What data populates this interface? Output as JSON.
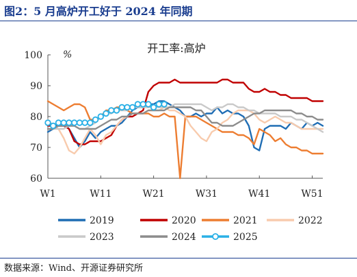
{
  "header": {
    "title": "图2：5 月高炉开工好于 2024 年同期"
  },
  "footer": {
    "source": "数据来源：Wind、开源证券研究所"
  },
  "chart_data": {
    "type": "line",
    "title": "开工率:高炉",
    "ylabel": "%",
    "ylim": [
      60,
      100
    ],
    "yticks": [
      60,
      70,
      80,
      90,
      100
    ],
    "xlim": [
      1,
      53
    ],
    "xticks": [
      1,
      11,
      21,
      31,
      41,
      51
    ],
    "xtick_labels": [
      "W1",
      "W11",
      "W21",
      "W31",
      "W41",
      "W51"
    ],
    "grid": false,
    "legend_position": "bottom",
    "series": [
      {
        "name": "2019",
        "color": "#1f6db4",
        "marker": false,
        "x": [
          1,
          2,
          3,
          4,
          5,
          6,
          7,
          8,
          9,
          10,
          11,
          12,
          13,
          14,
          15,
          16,
          17,
          18,
          19,
          20,
          21,
          22,
          23,
          24,
          25,
          26,
          27,
          28,
          29,
          30,
          31,
          32,
          33,
          34,
          35,
          36,
          37,
          38,
          39,
          40,
          41,
          42,
          43,
          44,
          45,
          46,
          47,
          48,
          49,
          50,
          51,
          52,
          53
        ],
        "y": [
          75,
          76,
          77,
          78,
          76,
          73,
          70,
          72,
          75,
          73,
          75,
          76,
          77,
          77,
          78,
          80,
          82,
          83,
          83,
          84,
          84,
          85,
          85,
          84,
          83,
          82,
          80,
          80,
          81,
          80,
          81,
          81,
          83,
          81,
          82,
          81,
          81,
          80,
          77,
          70,
          69,
          76,
          77,
          77,
          77,
          76,
          78,
          77,
          76,
          78,
          77,
          78,
          77
        ]
      },
      {
        "name": "2020",
        "color": "#c00000",
        "marker": false,
        "x": [
          1,
          2,
          3,
          4,
          5,
          6,
          7,
          8,
          9,
          10,
          11,
          12,
          13,
          14,
          15,
          16,
          17,
          18,
          19,
          20,
          21,
          22,
          23,
          24,
          25,
          26,
          27,
          28,
          29,
          30,
          31,
          32,
          33,
          34,
          35,
          36,
          37,
          38,
          39,
          40,
          41,
          42,
          43,
          44,
          45,
          46,
          47,
          48,
          49,
          50,
          51,
          52,
          53
        ],
        "y": [
          77,
          77,
          77,
          77,
          76,
          72,
          71,
          71,
          72,
          72,
          72,
          73,
          74,
          77,
          79,
          80,
          80,
          81,
          82,
          88,
          90,
          91,
          91,
          91,
          92,
          91,
          91,
          91,
          91,
          91,
          91,
          91,
          91,
          92,
          92,
          91,
          91,
          91,
          89,
          88,
          88,
          89,
          88,
          88,
          87,
          87,
          86,
          86,
          86,
          86,
          85,
          85,
          85
        ]
      },
      {
        "name": "2021",
        "color": "#ed7d31",
        "marker": false,
        "x": [
          1,
          2,
          3,
          4,
          5,
          6,
          7,
          8,
          9,
          10,
          11,
          12,
          13,
          14,
          15,
          16,
          17,
          18,
          19,
          20,
          21,
          22,
          23,
          24,
          25,
          26,
          27,
          28,
          29,
          30,
          31,
          32,
          33,
          34,
          35,
          36,
          37,
          38,
          39,
          40,
          41,
          42,
          43,
          44,
          45,
          46,
          47,
          48,
          49,
          50,
          51,
          52,
          53
        ],
        "y": [
          85,
          84,
          83,
          82,
          83,
          84,
          84,
          83,
          79,
          79,
          80,
          82,
          82,
          83,
          83,
          82,
          81,
          81,
          81,
          81,
          80,
          80,
          81,
          80,
          80,
          60,
          80,
          80,
          80,
          79,
          78,
          77,
          76,
          75,
          75,
          75,
          74,
          74,
          73,
          71,
          76,
          75,
          74,
          72,
          73,
          71,
          70,
          70,
          69,
          69,
          68,
          68,
          68
        ]
      },
      {
        "name": "2022",
        "color": "#f8cbad",
        "marker": false,
        "x": [
          1,
          2,
          3,
          4,
          5,
          6,
          7,
          8,
          9,
          10,
          11,
          12,
          13,
          14,
          15,
          16,
          17,
          18,
          19,
          20,
          21,
          22,
          23,
          24,
          25,
          26,
          27,
          28,
          29,
          30,
          31,
          32,
          33,
          34,
          35,
          36,
          37,
          38,
          39,
          40,
          41,
          42,
          43,
          44,
          45,
          46,
          47,
          48,
          49,
          50,
          51,
          52,
          53
        ],
        "y": [
          79,
          77,
          76,
          73,
          69,
          68,
          70,
          73,
          76,
          74,
          71,
          74,
          75,
          77,
          79,
          80,
          81,
          81,
          81,
          82,
          82,
          82,
          83,
          82,
          82,
          81,
          80,
          77,
          75,
          73,
          72,
          75,
          76,
          78,
          79,
          81,
          82,
          82,
          82,
          81,
          79,
          78,
          79,
          80,
          79,
          78,
          78,
          77,
          76,
          76,
          76,
          76,
          76
        ]
      },
      {
        "name": "2023",
        "color": "#c9c9c9",
        "marker": false,
        "x": [
          1,
          2,
          3,
          4,
          5,
          6,
          7,
          8,
          9,
          10,
          11,
          12,
          13,
          14,
          15,
          16,
          17,
          18,
          19,
          20,
          21,
          22,
          23,
          24,
          25,
          26,
          27,
          28,
          29,
          30,
          31,
          32,
          33,
          34,
          35,
          36,
          37,
          38,
          39,
          40,
          41,
          42,
          43,
          44,
          45,
          46,
          47,
          48,
          49,
          50,
          51,
          52,
          53
        ],
        "y": [
          76,
          76,
          76,
          76,
          77,
          77,
          76,
          76,
          77,
          78,
          80,
          81,
          81,
          82,
          82,
          82,
          83,
          83,
          83,
          83,
          83,
          83,
          83,
          83,
          84,
          84,
          84,
          84,
          84,
          84,
          83,
          82,
          83,
          83,
          84,
          84,
          83,
          83,
          82,
          82,
          81,
          81,
          81,
          81,
          80,
          80,
          80,
          79,
          79,
          78,
          77,
          76,
          75
        ]
      },
      {
        "name": "2024",
        "color": "#8c8c8c",
        "marker": false,
        "x": [
          1,
          2,
          3,
          4,
          5,
          6,
          7,
          8,
          9,
          10,
          11,
          12,
          13,
          14,
          15,
          16,
          17,
          18,
          19,
          20,
          21,
          22,
          23,
          24,
          25,
          26,
          27,
          28,
          29,
          30,
          31,
          32,
          33,
          34,
          35,
          36,
          37,
          38,
          39,
          40,
          41,
          42,
          43,
          44,
          45,
          46,
          47,
          48,
          49,
          50,
          51,
          52,
          53
        ],
        "y": [
          76,
          76,
          77,
          77,
          77,
          77,
          76,
          76,
          76,
          76,
          77,
          78,
          79,
          79,
          80,
          80,
          81,
          81,
          81,
          82,
          82,
          82,
          82,
          83,
          83,
          83,
          83,
          83,
          82,
          82,
          80,
          78,
          78,
          77,
          77,
          77,
          78,
          79,
          80,
          81,
          81,
          82,
          82,
          82,
          82,
          82,
          82,
          81,
          81,
          80,
          80,
          79,
          79
        ]
      },
      {
        "name": "2025",
        "color": "#2ab0e6",
        "marker": true,
        "x": [
          1,
          2,
          3,
          4,
          5,
          6,
          7,
          8,
          9,
          10,
          11,
          12,
          13,
          14,
          15,
          16,
          17,
          18,
          19,
          20,
          21,
          22,
          23
        ],
        "y": [
          78,
          77,
          78,
          78,
          78,
          78,
          78,
          78,
          78,
          79,
          80,
          81,
          82,
          82,
          83,
          83,
          83,
          84,
          84,
          84,
          83,
          84,
          84
        ]
      }
    ]
  }
}
